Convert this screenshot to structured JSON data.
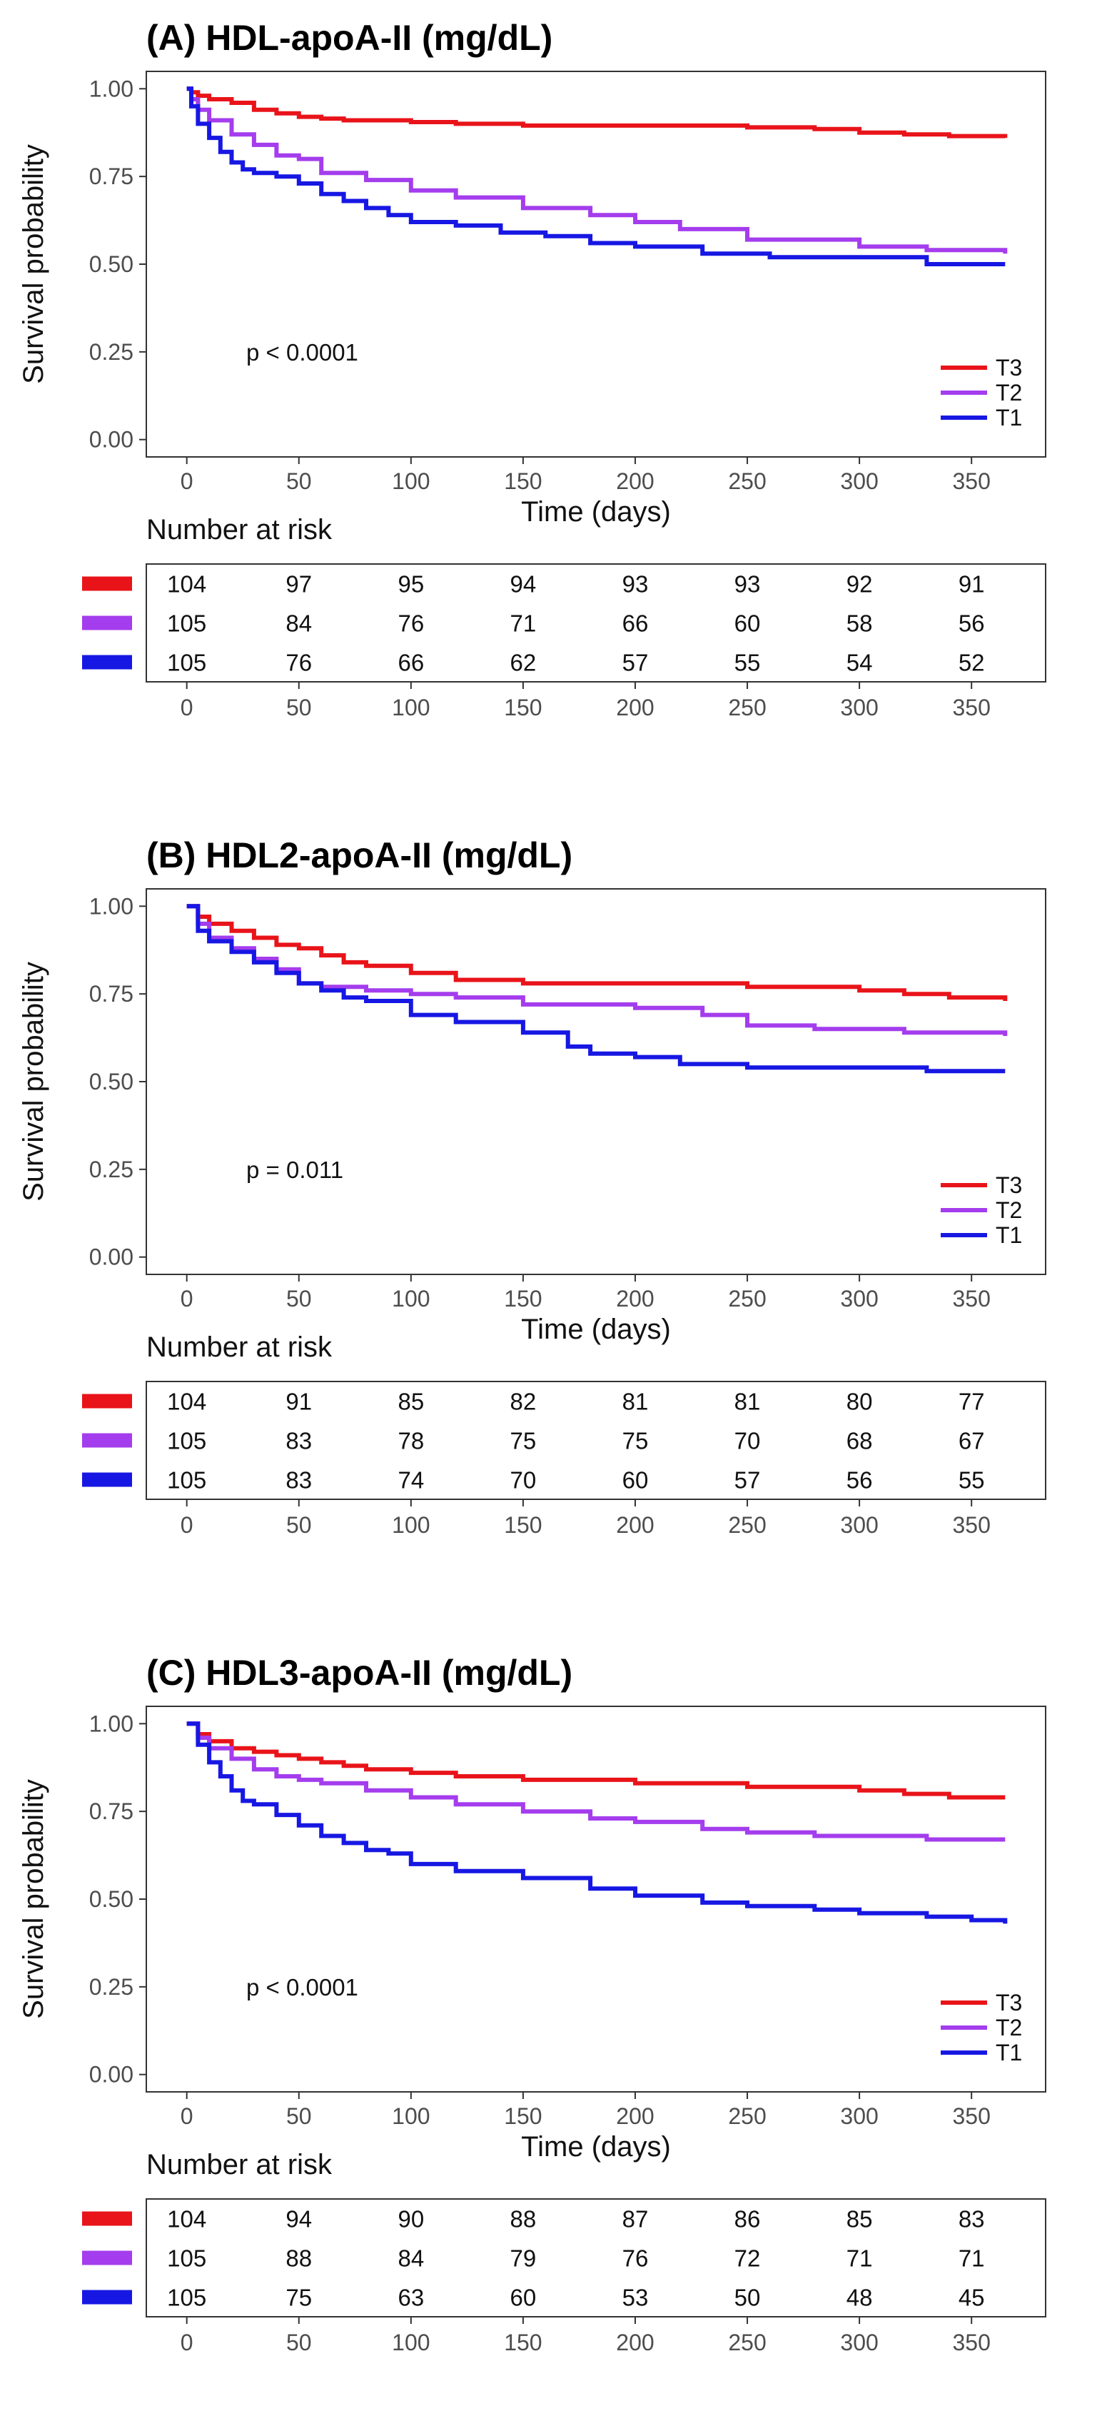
{
  "chart_data": [
    {
      "type": "line",
      "subtype": "kaplan-meier",
      "title": "(A)  HDL-apoA-II (mg/dL)",
      "xlabel": "Time (days)",
      "ylabel": "Survival probability",
      "xlim": [
        0,
        365
      ],
      "ylim": [
        0,
        1
      ],
      "xticks": [
        0,
        50,
        100,
        150,
        200,
        250,
        300,
        350
      ],
      "yticks": [
        "0.00",
        "0.25",
        "0.50",
        "0.75",
        "1.00"
      ],
      "grid": false,
      "legend_position": "bottom-right",
      "p_value": "p < 0.0001",
      "risk_table_title": "Number at risk",
      "risk_times": [
        0,
        50,
        100,
        150,
        200,
        250,
        300,
        350
      ],
      "series": [
        {
          "name": "T3",
          "color": "#e8141a",
          "x": [
            0,
            2,
            5,
            10,
            20,
            30,
            40,
            50,
            60,
            70,
            80,
            100,
            120,
            150,
            200,
            250,
            280,
            300,
            320,
            340,
            365
          ],
          "y": [
            1.0,
            0.99,
            0.98,
            0.97,
            0.96,
            0.94,
            0.93,
            0.92,
            0.915,
            0.91,
            0.91,
            0.905,
            0.9,
            0.895,
            0.895,
            0.89,
            0.885,
            0.875,
            0.87,
            0.865,
            0.86
          ],
          "risk": [
            104,
            97,
            95,
            94,
            93,
            93,
            92,
            91
          ]
        },
        {
          "name": "T2",
          "color": "#a43ded",
          "x": [
            0,
            2,
            5,
            10,
            20,
            30,
            40,
            50,
            60,
            80,
            100,
            120,
            150,
            180,
            200,
            220,
            250,
            300,
            330,
            365
          ],
          "y": [
            1.0,
            0.97,
            0.94,
            0.91,
            0.87,
            0.84,
            0.81,
            0.8,
            0.76,
            0.74,
            0.71,
            0.69,
            0.66,
            0.64,
            0.62,
            0.6,
            0.57,
            0.55,
            0.54,
            0.53
          ],
          "risk": [
            105,
            84,
            76,
            71,
            66,
            60,
            58,
            56
          ]
        },
        {
          "name": "T1",
          "color": "#1717e3",
          "x": [
            0,
            2,
            5,
            10,
            15,
            20,
            25,
            30,
            40,
            50,
            60,
            70,
            80,
            90,
            100,
            120,
            140,
            160,
            180,
            200,
            230,
            260,
            300,
            330,
            365
          ],
          "y": [
            1.0,
            0.95,
            0.9,
            0.86,
            0.82,
            0.79,
            0.77,
            0.76,
            0.75,
            0.73,
            0.7,
            0.68,
            0.66,
            0.64,
            0.62,
            0.61,
            0.59,
            0.58,
            0.56,
            0.55,
            0.53,
            0.52,
            0.52,
            0.5,
            0.5
          ],
          "risk": [
            105,
            76,
            66,
            62,
            57,
            55,
            54,
            52
          ]
        }
      ]
    },
    {
      "type": "line",
      "subtype": "kaplan-meier",
      "title": "(B)  HDL2-apoA-II (mg/dL)",
      "xlabel": "Time (days)",
      "ylabel": "Survival probability",
      "xlim": [
        0,
        365
      ],
      "ylim": [
        0,
        1
      ],
      "xticks": [
        0,
        50,
        100,
        150,
        200,
        250,
        300,
        350
      ],
      "yticks": [
        "0.00",
        "0.25",
        "0.50",
        "0.75",
        "1.00"
      ],
      "grid": false,
      "legend_position": "bottom-right",
      "p_value": "p = 0.011",
      "risk_table_title": "Number at risk",
      "risk_times": [
        0,
        50,
        100,
        150,
        200,
        250,
        300,
        350
      ],
      "series": [
        {
          "name": "T3",
          "color": "#e8141a",
          "x": [
            0,
            5,
            10,
            20,
            30,
            40,
            50,
            60,
            70,
            80,
            100,
            120,
            150,
            200,
            250,
            280,
            300,
            320,
            340,
            365
          ],
          "y": [
            1.0,
            0.97,
            0.95,
            0.93,
            0.91,
            0.89,
            0.88,
            0.86,
            0.84,
            0.83,
            0.81,
            0.79,
            0.78,
            0.78,
            0.77,
            0.77,
            0.76,
            0.75,
            0.74,
            0.73
          ],
          "risk": [
            104,
            91,
            85,
            82,
            81,
            81,
            80,
            77
          ]
        },
        {
          "name": "T2",
          "color": "#a43ded",
          "x": [
            0,
            5,
            10,
            20,
            30,
            40,
            50,
            60,
            80,
            100,
            120,
            150,
            200,
            230,
            250,
            280,
            300,
            320,
            365
          ],
          "y": [
            1.0,
            0.95,
            0.91,
            0.88,
            0.85,
            0.82,
            0.78,
            0.77,
            0.76,
            0.75,
            0.74,
            0.72,
            0.71,
            0.69,
            0.66,
            0.65,
            0.65,
            0.64,
            0.63
          ],
          "risk": [
            105,
            83,
            78,
            75,
            75,
            70,
            68,
            67
          ]
        },
        {
          "name": "T1",
          "color": "#1717e3",
          "x": [
            0,
            5,
            10,
            20,
            30,
            40,
            50,
            60,
            70,
            80,
            100,
            120,
            150,
            170,
            180,
            200,
            220,
            250,
            300,
            330,
            365
          ],
          "y": [
            1.0,
            0.93,
            0.9,
            0.87,
            0.84,
            0.81,
            0.78,
            0.76,
            0.74,
            0.73,
            0.69,
            0.67,
            0.64,
            0.6,
            0.58,
            0.57,
            0.55,
            0.54,
            0.54,
            0.53,
            0.53
          ],
          "risk": [
            105,
            83,
            74,
            70,
            60,
            57,
            56,
            55
          ]
        }
      ]
    },
    {
      "type": "line",
      "subtype": "kaplan-meier",
      "title": "(C)  HDL3-apoA-II (mg/dL)",
      "xlabel": "Time (days)",
      "ylabel": "Survival probability",
      "xlim": [
        0,
        365
      ],
      "ylim": [
        0,
        1
      ],
      "xticks": [
        0,
        50,
        100,
        150,
        200,
        250,
        300,
        350
      ],
      "yticks": [
        "0.00",
        "0.25",
        "0.50",
        "0.75",
        "1.00"
      ],
      "grid": false,
      "legend_position": "bottom-right",
      "p_value": "p < 0.0001",
      "risk_table_title": "Number at risk",
      "risk_times": [
        0,
        50,
        100,
        150,
        200,
        250,
        300,
        350
      ],
      "series": [
        {
          "name": "T3",
          "color": "#e8141a",
          "x": [
            0,
            5,
            10,
            20,
            30,
            40,
            50,
            60,
            70,
            80,
            100,
            120,
            150,
            200,
            250,
            280,
            300,
            320,
            340,
            365
          ],
          "y": [
            1.0,
            0.97,
            0.95,
            0.93,
            0.92,
            0.91,
            0.9,
            0.89,
            0.88,
            0.87,
            0.86,
            0.85,
            0.84,
            0.83,
            0.82,
            0.82,
            0.81,
            0.8,
            0.79,
            0.79
          ],
          "risk": [
            104,
            94,
            90,
            88,
            87,
            86,
            85,
            83
          ]
        },
        {
          "name": "T2",
          "color": "#a43ded",
          "x": [
            0,
            5,
            10,
            20,
            30,
            40,
            50,
            60,
            80,
            100,
            120,
            150,
            180,
            200,
            230,
            250,
            280,
            300,
            330,
            365
          ],
          "y": [
            1.0,
            0.96,
            0.93,
            0.9,
            0.87,
            0.85,
            0.84,
            0.83,
            0.81,
            0.79,
            0.77,
            0.75,
            0.73,
            0.72,
            0.7,
            0.69,
            0.68,
            0.68,
            0.67,
            0.67
          ],
          "risk": [
            105,
            88,
            84,
            79,
            76,
            72,
            71,
            71
          ]
        },
        {
          "name": "T1",
          "color": "#1717e3",
          "x": [
            0,
            5,
            10,
            15,
            20,
            25,
            30,
            40,
            50,
            60,
            70,
            80,
            90,
            100,
            120,
            150,
            180,
            200,
            230,
            250,
            280,
            300,
            330,
            350,
            365
          ],
          "y": [
            1.0,
            0.94,
            0.89,
            0.85,
            0.81,
            0.78,
            0.77,
            0.74,
            0.71,
            0.68,
            0.66,
            0.64,
            0.63,
            0.6,
            0.58,
            0.56,
            0.53,
            0.51,
            0.49,
            0.48,
            0.47,
            0.46,
            0.45,
            0.44,
            0.43
          ],
          "risk": [
            105,
            75,
            63,
            60,
            53,
            50,
            48,
            45
          ]
        }
      ]
    }
  ]
}
